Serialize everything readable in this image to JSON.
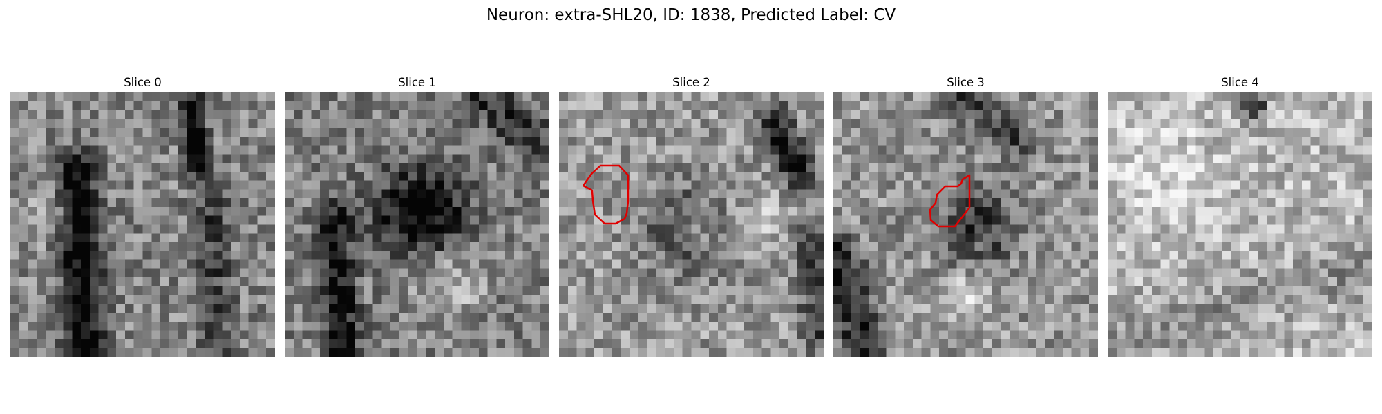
{
  "figure": {
    "title": "Neuron: extra-SHL20, ID: 1838, Predicted Label: CV",
    "contour_color": "#e00000"
  },
  "slices": [
    {
      "label": "Slice 0",
      "has_contour": false
    },
    {
      "label": "Slice 1",
      "has_contour": false
    },
    {
      "label": "Slice 2",
      "has_contour": true
    },
    {
      "label": "Slice 3",
      "has_contour": true
    },
    {
      "label": "Slice 4",
      "has_contour": false
    }
  ]
}
